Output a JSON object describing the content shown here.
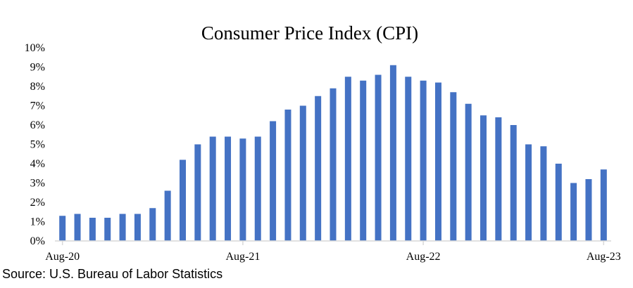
{
  "chart_data": {
    "type": "bar",
    "title": "Consumer Price Index (CPI)",
    "source": "Source: U.S. Bureau of Labor Statistics",
    "xlabel": "",
    "ylabel": "",
    "ylim": [
      0,
      10
    ],
    "y_tick_values": [
      0,
      1,
      2,
      3,
      4,
      5,
      6,
      7,
      8,
      9,
      10
    ],
    "y_tick_labels": [
      "0%",
      "1%",
      "2%",
      "3%",
      "4%",
      "5%",
      "6%",
      "7%",
      "8%",
      "9%",
      "10%"
    ],
    "x_tick_labels": [
      {
        "label": "Aug-20",
        "index": 0
      },
      {
        "label": "Aug-21",
        "index": 12
      },
      {
        "label": "Aug-22",
        "index": 24
      },
      {
        "label": "Aug-23",
        "index": 36
      }
    ],
    "categories": [
      "Aug-20",
      "Sep-20",
      "Oct-20",
      "Nov-20",
      "Dec-20",
      "Jan-21",
      "Feb-21",
      "Mar-21",
      "Apr-21",
      "May-21",
      "Jun-21",
      "Jul-21",
      "Aug-21",
      "Sep-21",
      "Oct-21",
      "Nov-21",
      "Dec-21",
      "Jan-22",
      "Feb-22",
      "Mar-22",
      "Apr-22",
      "May-22",
      "Jun-22",
      "Jul-22",
      "Aug-22",
      "Sep-22",
      "Oct-22",
      "Nov-22",
      "Dec-22",
      "Jan-23",
      "Feb-23",
      "Mar-23",
      "Apr-23",
      "May-23",
      "Jun-23",
      "Jul-23",
      "Aug-23"
    ],
    "values": [
      1.3,
      1.4,
      1.2,
      1.2,
      1.4,
      1.4,
      1.7,
      2.6,
      4.2,
      5.0,
      5.4,
      5.4,
      5.3,
      5.4,
      6.2,
      6.8,
      7.0,
      7.5,
      7.9,
      8.5,
      8.3,
      8.6,
      9.1,
      8.5,
      8.3,
      8.2,
      7.7,
      7.1,
      6.5,
      6.4,
      6.0,
      5.0,
      4.9,
      4.0,
      3.0,
      3.2,
      3.7
    ],
    "grid": false,
    "legend": "none",
    "bar_color": "#4472C4",
    "axis_color": "#D9D9D9"
  }
}
